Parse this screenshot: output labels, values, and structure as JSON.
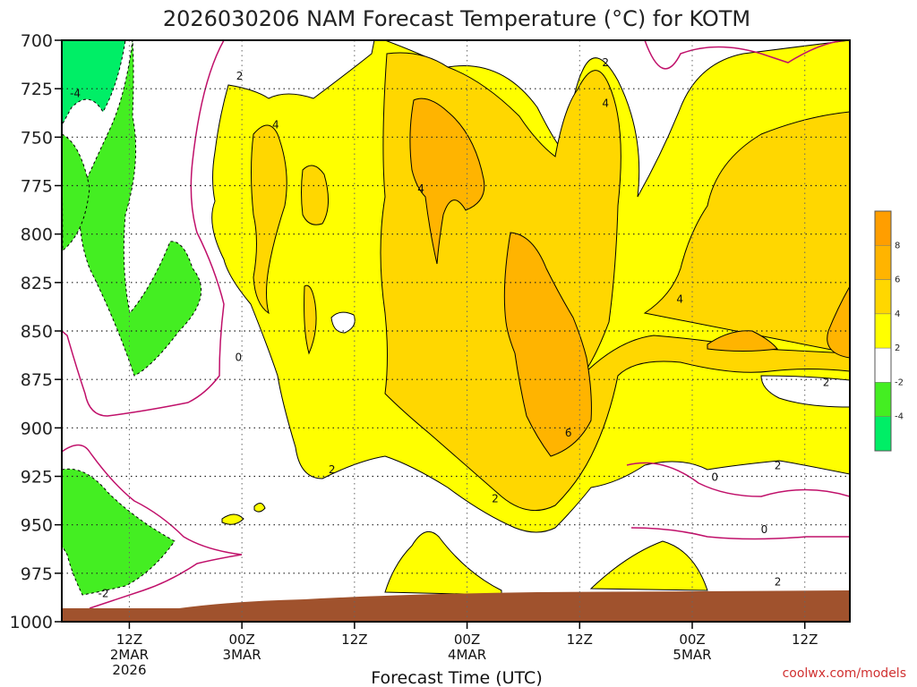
{
  "chart_data": {
    "type": "heatmap",
    "title": "2026030206 NAM Forecast Temperature (°C) for KOTM",
    "xlabel": "Forecast Time (UTC)",
    "ylabel": "",
    "credit": "coolwx.com/models",
    "y_axis": {
      "scale": "pressure",
      "inverted": true,
      "ylim": [
        1000,
        700
      ],
      "ticks": [
        "700",
        "725",
        "750",
        "775",
        "800",
        "825",
        "850",
        "875",
        "900",
        "925",
        "950",
        "975",
        "1000"
      ]
    },
    "x_axis": {
      "hours_range": [
        6,
        76
      ],
      "ticks": [
        {
          "hour": 12,
          "lines": [
            "12Z",
            "2MAR",
            "2026"
          ]
        },
        {
          "hour": 22,
          "lines": [
            "00Z",
            "3MAR"
          ]
        },
        {
          "hour": 32,
          "lines": [
            "12Z"
          ]
        },
        {
          "hour": 42,
          "lines": [
            "00Z",
            "4MAR"
          ]
        },
        {
          "hour": 52,
          "lines": [
            "12Z"
          ]
        },
        {
          "hour": 62,
          "lines": [
            "00Z",
            "5MAR"
          ]
        },
        {
          "hour": 72,
          "lines": [
            "12Z"
          ]
        }
      ]
    },
    "grid": true,
    "legend": {
      "position": "right",
      "levels": [
        {
          "range": [
            -6,
            -4
          ],
          "color": "#00ee66"
        },
        {
          "range": [
            -4,
            -2
          ],
          "color": "#44ee22"
        },
        {
          "range": [
            -2,
            2
          ],
          "color": "#ffffff"
        },
        {
          "range": [
            2,
            4
          ],
          "color": "#ffff00"
        },
        {
          "range": [
            4,
            6
          ],
          "color": "#ffd700"
        },
        {
          "range": [
            6,
            8
          ],
          "color": "#ffb400"
        },
        {
          "range": [
            8,
            10
          ],
          "color": "#ff9e00"
        }
      ],
      "tick_labels": [
        "-4",
        "-2",
        "2",
        "4",
        "6",
        "8"
      ]
    },
    "contour_labels": [
      {
        "text": "-4",
        "hour": 7.2,
        "p": 728
      },
      {
        "text": "2",
        "hour": 21.8,
        "p": 719
      },
      {
        "text": "4",
        "hour": 25.0,
        "p": 744
      },
      {
        "text": "4",
        "hour": 37.9,
        "p": 777
      },
      {
        "text": "0",
        "hour": 21.7,
        "p": 864
      },
      {
        "text": "-2",
        "hour": 9.7,
        "p": 986
      },
      {
        "text": "2",
        "hour": 30.0,
        "p": 922
      },
      {
        "text": "2",
        "hour": 44.5,
        "p": 937
      },
      {
        "text": "6",
        "hour": 51.0,
        "p": 903
      },
      {
        "text": "2",
        "hour": 54.3,
        "p": 712
      },
      {
        "text": "4",
        "hour": 54.3,
        "p": 733
      },
      {
        "text": "4",
        "hour": 60.9,
        "p": 834
      },
      {
        "text": "2",
        "hour": 73.9,
        "p": 877
      },
      {
        "text": "0",
        "hour": 64.0,
        "p": 926
      },
      {
        "text": "2",
        "hour": 69.6,
        "p": 920
      },
      {
        "text": "0",
        "hour": 68.4,
        "p": 953
      },
      {
        "text": "2",
        "hour": 69.6,
        "p": 980
      }
    ],
    "surface_pressure_hpa": [
      997,
      997,
      995,
      992,
      990,
      991,
      992,
      993
    ]
  }
}
